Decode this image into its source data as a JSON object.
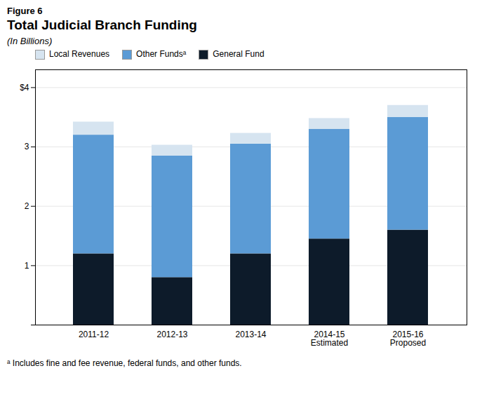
{
  "chart_data": {
    "type": "bar",
    "stacked": true,
    "title": "Total Judicial Branch Funding",
    "subtitle": "(In Billions)",
    "annotations": [
      "Figure 6",
      "ᵃ Includes fine and fee revenue, federal funds, and other funds."
    ],
    "categories": [
      "2011-12",
      "2012-13",
      "2013-14",
      "2014-15\nEstimated",
      "2015-16\nProposed"
    ],
    "series": [
      {
        "name": "General Fund",
        "color": "#0d1b2a",
        "values": [
          1.2,
          0.8,
          1.2,
          1.45,
          1.6
        ]
      },
      {
        "name": "Other Fundsᵃ",
        "color": "#5b9bd5",
        "values": [
          2.0,
          2.05,
          1.85,
          1.85,
          1.9
        ]
      },
      {
        "name": "Local Revenues",
        "color": "#d6e4f0",
        "values": [
          0.22,
          0.18,
          0.18,
          0.18,
          0.2
        ]
      }
    ],
    "ylim": [
      0,
      4.3
    ],
    "yticks": [
      {
        "value": 0,
        "label": ""
      },
      1,
      2,
      3,
      {
        "value": 4,
        "label": "$4"
      }
    ],
    "grid": true,
    "legend": "top"
  }
}
